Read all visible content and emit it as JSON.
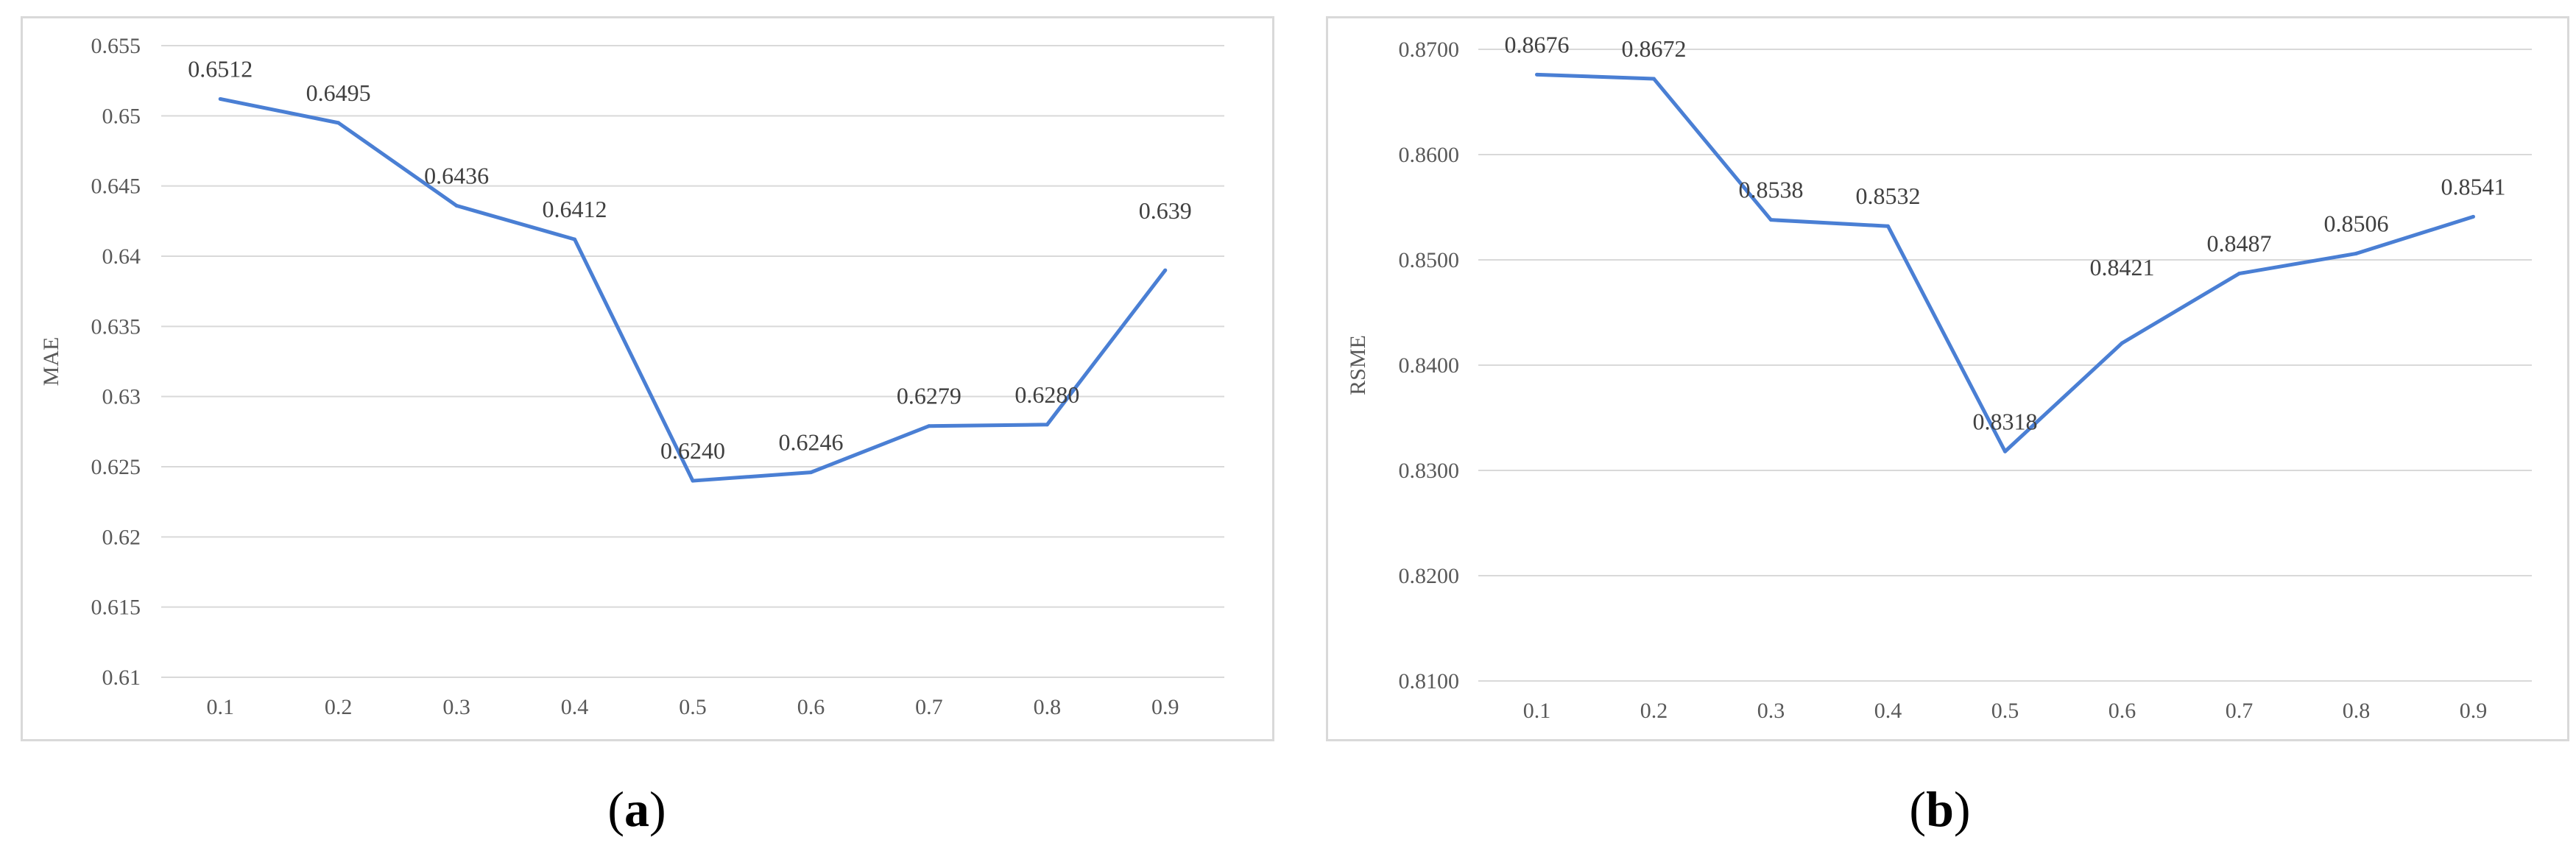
{
  "chart_data": [
    {
      "type": "line",
      "panel": "a",
      "caption": "a",
      "title": "",
      "xlabel": "",
      "ylabel": "MAE",
      "x": [
        "0.1",
        "0.2",
        "0.3",
        "0.4",
        "0.5",
        "0.6",
        "0.7",
        "0.8",
        "0.9"
      ],
      "y_ticks": [
        "0.61",
        "0.615",
        "0.62",
        "0.625",
        "0.63",
        "0.635",
        "0.64",
        "0.645",
        "0.65",
        "0.655"
      ],
      "ylim": [
        0.61,
        0.655
      ],
      "grid": true,
      "legend": "none",
      "line_color": "#4a7fd4",
      "series": [
        {
          "values": [
            0.6512,
            0.6495,
            0.6436,
            0.6412,
            0.624,
            0.6246,
            0.6279,
            0.628,
            0.639
          ],
          "labels": [
            "0.6512",
            "0.6495",
            "0.6436",
            "0.6412",
            "0.6240",
            "0.6246",
            "0.6279",
            "0.6280",
            "0.639"
          ]
        }
      ]
    },
    {
      "type": "line",
      "panel": "b",
      "caption": "b",
      "title": "",
      "xlabel": "",
      "ylabel": "RSME",
      "x": [
        "0.1",
        "0.2",
        "0.3",
        "0.4",
        "0.5",
        "0.6",
        "0.7",
        "0.8",
        "0.9"
      ],
      "y_ticks": [
        "0.8100",
        "0.8200",
        "0.8300",
        "0.8400",
        "0.8500",
        "0.8600",
        "0.8700"
      ],
      "ylim": [
        0.81,
        0.87
      ],
      "grid": true,
      "legend": "none",
      "line_color": "#4a7fd4",
      "series": [
        {
          "values": [
            0.8676,
            0.8672,
            0.8538,
            0.8532,
            0.8318,
            0.8421,
            0.8487,
            0.8506,
            0.8541
          ],
          "labels": [
            "0.8676",
            "0.8672",
            "0.8538",
            "0.8532",
            "0.8318",
            "0.8421",
            "0.8487",
            "0.8506",
            "0.8541"
          ]
        }
      ]
    }
  ]
}
